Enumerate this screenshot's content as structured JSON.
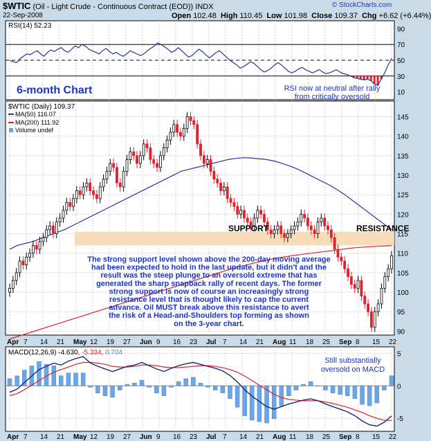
{
  "header": {
    "symbol": "$WTIC",
    "name": "(Oil - Light Crude - Continuous Contract (EOD))",
    "exchange": "INDX",
    "date": "22-Sep-2008",
    "open_label": "Open",
    "open": "102.48",
    "high_label": "High",
    "high": "110.45",
    "low_label": "Low",
    "low": "101.98",
    "close_label": "Close",
    "close": "109.37",
    "chg_label": "Chg",
    "chg": "+6.62 (+6.44%)",
    "tag": "© StockCharts.com"
  },
  "rsi_panel": {
    "legend": "RSI(14)",
    "value": "52.23",
    "ticks": [
      "90",
      "70",
      "50",
      "30",
      "10"
    ],
    "title": "6-month Chart",
    "note": [
      "RSI now at neutral after rally",
      "from critically oversold"
    ]
  },
  "price_panel": {
    "legend_main": "$WTIC (Daily) 109.37",
    "legend_ma50": "MA(50) 116.07",
    "legend_ma200": "MA(200) 111.92",
    "legend_volume": "Volume undef",
    "ticks": [
      "145",
      "140",
      "135",
      "130",
      "125",
      "120",
      "115",
      "110",
      "105",
      "100",
      "95",
      "90"
    ],
    "support_label": "SUPPORT",
    "resistance_label": "RESISTANCE",
    "commentary": [
      "The strong support level shown above the 200-day moving average",
      "had been expected to hold in the last update, but it didn't and the",
      "result was the steep plunge to an oversold extreme that has",
      "generated the sharp snapback rally of recent days. The former",
      "strong support is now of course an increasingly strong",
      "resistance level that is thought likely to cap the current",
      "advance. Oil MUST break above this resistance to avert",
      "the risk of a Head-and-Shoulders top forming as shown",
      "on the 3-year chart."
    ]
  },
  "macd_panel": {
    "legend_name": "MACD(12,26,9)",
    "legend_macd": "-4.630",
    "legend_signal": "-5.334",
    "legend_hist": "0.704",
    "ticks": [
      "5",
      "0",
      "-5"
    ],
    "note": [
      "Still substantially",
      "oversold on MACD"
    ]
  },
  "x_axis": {
    "labels": [
      "Apr",
      "7",
      "14",
      "21",
      "May",
      "12",
      "19",
      "27",
      "Jun",
      "9",
      "16",
      "23",
      "Jul",
      "7",
      "14",
      "21",
      "Aug",
      "11",
      "18",
      "25",
      "Sep",
      "8",
      "15",
      "22"
    ]
  },
  "colors": {
    "background": "#c9dbe9",
    "candle_up": "#000000",
    "candle_down": "#e0202a",
    "ma50": "#2a2fa8",
    "ma200": "#e0202a",
    "rsi": "#1e3a8a",
    "band": "#f5d9b0",
    "title_text": "#1b34c9",
    "macd_hist": "#6aa6e8"
  },
  "chart_data": [
    {
      "type": "line",
      "title": "RSI(14)",
      "ylim": [
        0,
        100
      ],
      "guides": [
        70,
        50,
        30
      ],
      "x_start": "2008-04-01",
      "x_end": "2008-09-22",
      "values": [
        50,
        48,
        47,
        52,
        55,
        58,
        57,
        60,
        62,
        58,
        55,
        60,
        63,
        61,
        64,
        66,
        62,
        60,
        64,
        68,
        66,
        70,
        68,
        64,
        62,
        60,
        58,
        62,
        65,
        61,
        58,
        60,
        57,
        55,
        58,
        62,
        60,
        58,
        56,
        58,
        62,
        65,
        68,
        72,
        70,
        67,
        64,
        60,
        62,
        66,
        62,
        58,
        54,
        56,
        60,
        64,
        61,
        57,
        53,
        56,
        60,
        62,
        58,
        54,
        50,
        47,
        44,
        40,
        42,
        45,
        48,
        46,
        42,
        38,
        35,
        37,
        40,
        44,
        47,
        44,
        40,
        36,
        34,
        36,
        39,
        41,
        38,
        36,
        34,
        36,
        38,
        35,
        33,
        34,
        36,
        38,
        35,
        33,
        32,
        30,
        28,
        27,
        26,
        25,
        26,
        24,
        20,
        18,
        26,
        34,
        44,
        52.23
      ]
    },
    {
      "type": "candlestick",
      "title": "$WTIC (Daily) 109.37",
      "ylim": [
        89,
        149
      ],
      "x_start": "2008-04-01",
      "x_end": "2008-09-22",
      "closes": [
        101,
        103,
        105,
        108,
        107,
        109,
        110,
        112,
        111,
        113,
        114,
        116,
        117,
        115,
        118,
        119,
        121,
        123,
        122,
        124,
        126,
        125,
        127,
        128,
        126,
        125,
        124,
        127,
        129,
        131,
        133,
        132,
        128,
        127,
        131,
        134,
        136,
        135,
        133,
        135,
        138,
        137,
        134,
        133,
        132,
        135,
        137,
        139,
        141,
        143,
        141,
        140,
        142,
        145,
        144,
        143,
        138,
        135,
        133,
        134,
        131,
        129,
        128,
        126,
        127,
        124,
        123,
        122,
        120,
        121,
        119,
        118,
        117,
        119,
        121,
        120,
        118,
        116,
        115,
        116,
        117,
        115,
        114,
        115,
        116,
        117,
        118,
        120,
        119,
        117,
        116,
        115,
        118,
        119,
        117,
        116,
        114,
        111,
        109,
        108,
        106,
        104,
        102,
        101,
        103,
        99,
        97,
        95,
        91,
        95,
        97,
        101,
        104,
        106,
        109.37
      ],
      "ma50": [
        111,
        112,
        112.5,
        113,
        113.8,
        114.5,
        115.3,
        116,
        117,
        118,
        119,
        120,
        121,
        122,
        123,
        124,
        125,
        126,
        127,
        128,
        129,
        130,
        131,
        131.5,
        132,
        132.5,
        133,
        133.5,
        134,
        134.3,
        134.5,
        134.4,
        134.2,
        134,
        133.6,
        133,
        132.3,
        131.5,
        130.5,
        129.5,
        128.5,
        127.5,
        126.3,
        125,
        123.5,
        122,
        120.5,
        119,
        117.5,
        116.07
      ],
      "ma200": [
        88,
        89,
        90,
        91,
        92,
        93,
        94,
        95,
        96,
        97,
        98,
        99,
        100,
        101,
        102,
        103,
        104,
        105,
        106,
        106.8,
        107.6,
        108.3,
        108.9,
        109.4,
        109.8,
        110.2,
        110.6,
        111,
        111.4,
        111.6,
        111.8,
        111.92
      ],
      "support_band": [
        112,
        115.5
      ]
    },
    {
      "type": "line",
      "title": "MACD(12,26,9)",
      "ylim": [
        -7,
        6
      ],
      "series": [
        {
          "name": "MACD",
          "values": [
            -1,
            -0.5,
            0.5,
            1.5,
            2.5,
            3,
            3.5,
            3.2,
            3.8,
            4.2,
            4.5,
            3.5,
            3,
            2.6,
            2.2,
            2.6,
            3,
            3.2,
            3.6,
            3.1,
            2.6,
            2.2,
            2.7,
            3.1,
            3.4,
            3.6,
            3.3,
            3,
            2.7,
            2.3,
            1.6,
            0.6,
            -0.6,
            -1.6,
            -2.4,
            -3.2,
            -3.6,
            -3.2,
            -2.8,
            -2.5,
            -2.2,
            -2,
            -2.3,
            -2.8,
            -3.2,
            -3.6,
            -4,
            -4.6,
            -5.4,
            -6,
            -6.2,
            -5.6,
            -4.63
          ]
        },
        {
          "name": "Signal",
          "values": [
            -1.5,
            -1.2,
            -0.6,
            0.1,
            0.8,
            1.5,
            2.1,
            2.5,
            2.9,
            3.3,
            3.6,
            3.6,
            3.5,
            3.3,
            3,
            2.9,
            2.9,
            3,
            3.2,
            3.2,
            3.1,
            2.9,
            2.8,
            2.8,
            2.9,
            3,
            3.1,
            3.1,
            3,
            2.8,
            2.5,
            2.1,
            1.5,
            0.8,
            0.1,
            -0.6,
            -1.3,
            -1.8,
            -2.1,
            -2.2,
            -2.3,
            -2.3,
            -2.3,
            -2.5,
            -2.7,
            -3,
            -3.3,
            -3.7,
            -4.1,
            -4.6,
            -5,
            -5.3,
            -5.334
          ]
        }
      ],
      "histogram_last": 0.704
    }
  ]
}
